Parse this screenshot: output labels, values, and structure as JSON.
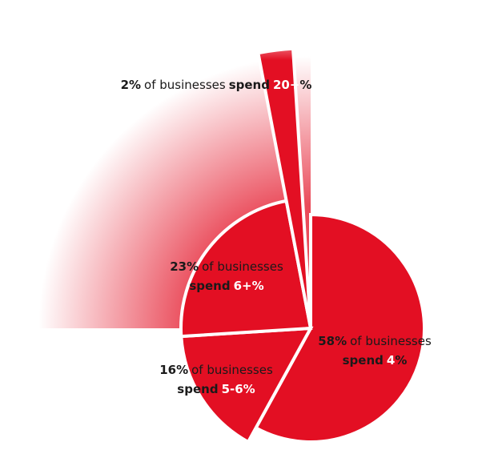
{
  "chart_data": {
    "type": "pie",
    "values": [
      58,
      16,
      23,
      2
    ],
    "value_labels": [
      "58%",
      "16%",
      "23%",
      "2%"
    ],
    "labels": [
      {
        "middle": "of businesses",
        "verb": "spend",
        "amount": "4",
        "unit": "%"
      },
      {
        "middle": "of businesses",
        "verb": "spend",
        "amount": "5-6",
        "unit": "%"
      },
      {
        "middle": "of businesses",
        "verb": "spend",
        "amount": "6+",
        "unit": "%"
      },
      {
        "middle": "of businesses",
        "verb": "spend",
        "amount": "20+",
        "unit": "%"
      }
    ],
    "color": "#e30f23"
  }
}
